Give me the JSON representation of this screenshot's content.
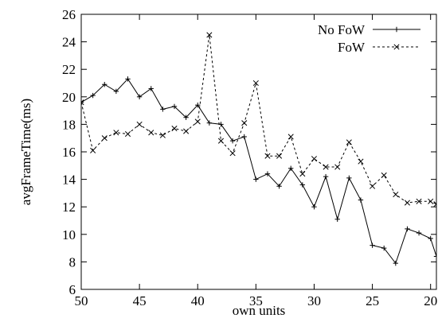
{
  "chart_data": {
    "type": "line",
    "xlabel": "own units",
    "ylabel": "avgFrameTime(ms)",
    "xlim": [
      50,
      19.5
    ],
    "ylim": [
      6,
      26
    ],
    "x_reversed": true,
    "grid": false,
    "legend_position": "top-right",
    "x_ticks": [
      50,
      45,
      40,
      35,
      30,
      25,
      20
    ],
    "y_ticks": [
      6,
      8,
      10,
      12,
      14,
      16,
      18,
      20,
      22,
      24,
      26
    ],
    "x": [
      50,
      49,
      48,
      47,
      46,
      45,
      44,
      43,
      42,
      41,
      40,
      39,
      38,
      37,
      36,
      35,
      34,
      33,
      32,
      31,
      30,
      29,
      28,
      27,
      26,
      25,
      24,
      23,
      22,
      21,
      20,
      19.5
    ],
    "series": [
      {
        "name": "No FoW",
        "style": "solid",
        "marker": "plus",
        "color": "#000000",
        "values": [
          19.6,
          20.1,
          20.9,
          20.4,
          21.3,
          20.0,
          20.6,
          19.1,
          19.3,
          18.5,
          19.4,
          18.1,
          18.0,
          16.8,
          17.1,
          14.0,
          14.4,
          13.5,
          14.8,
          13.6,
          12.0,
          14.2,
          11.1,
          14.1,
          12.5,
          9.2,
          9.0,
          7.9,
          10.4,
          10.1,
          9.7,
          8.4
        ]
      },
      {
        "name": "FoW",
        "style": "dashed",
        "marker": "x",
        "color": "#000000",
        "values": [
          19.6,
          16.1,
          17.0,
          17.4,
          17.3,
          18.0,
          17.4,
          17.2,
          17.7,
          17.5,
          18.2,
          24.5,
          16.8,
          15.9,
          18.1,
          21.0,
          15.7,
          15.7,
          17.1,
          14.4,
          15.5,
          14.9,
          14.9,
          16.7,
          15.3,
          13.5,
          14.3,
          12.9,
          12.3,
          12.4,
          12.4,
          12.2
        ]
      }
    ]
  }
}
